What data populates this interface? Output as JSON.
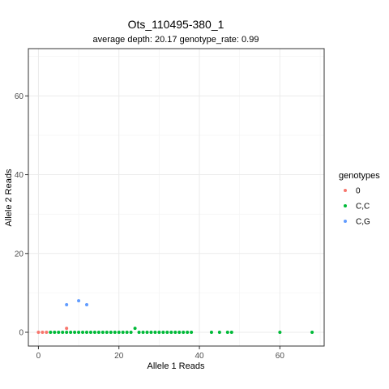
{
  "chart_data": {
    "type": "scatter",
    "title": "Ots_110495-380_1",
    "subtitle": "average depth:  20.17  genotype_rate:  0.99",
    "xlabel": "Allele 1 Reads",
    "ylabel": "Allele 2 Reads",
    "xlim": [
      -2.5,
      71
    ],
    "ylim": [
      -3.5,
      72
    ],
    "x_ticks": [
      0,
      20,
      40,
      60
    ],
    "y_ticks": [
      0,
      20,
      40,
      60
    ],
    "grid": true,
    "legend": {
      "title": "genotypes",
      "position": "right"
    },
    "series": [
      {
        "name": "0",
        "color": "#F8766D",
        "points": [
          [
            0,
            0
          ],
          [
            1,
            0
          ],
          [
            2,
            0
          ],
          [
            7,
            1
          ]
        ]
      },
      {
        "name": "C,C",
        "color": "#00BA38",
        "points": [
          [
            3,
            0
          ],
          [
            4,
            0
          ],
          [
            5,
            0
          ],
          [
            6,
            0
          ],
          [
            7,
            0
          ],
          [
            8,
            0
          ],
          [
            9,
            0
          ],
          [
            10,
            0
          ],
          [
            11,
            0
          ],
          [
            12,
            0
          ],
          [
            13,
            0
          ],
          [
            14,
            0
          ],
          [
            15,
            0
          ],
          [
            16,
            0
          ],
          [
            17,
            0
          ],
          [
            18,
            0
          ],
          [
            19,
            0
          ],
          [
            20,
            0
          ],
          [
            21,
            0
          ],
          [
            22,
            0
          ],
          [
            23,
            0
          ],
          [
            24,
            1
          ],
          [
            25,
            0
          ],
          [
            26,
            0
          ],
          [
            27,
            0
          ],
          [
            28,
            0
          ],
          [
            29,
            0
          ],
          [
            30,
            0
          ],
          [
            31,
            0
          ],
          [
            32,
            0
          ],
          [
            33,
            0
          ],
          [
            34,
            0
          ],
          [
            35,
            0
          ],
          [
            36,
            0
          ],
          [
            37,
            0
          ],
          [
            38,
            0
          ],
          [
            43,
            0
          ],
          [
            45,
            0
          ],
          [
            47,
            0
          ],
          [
            48,
            0
          ],
          [
            60,
            0
          ],
          [
            68,
            0
          ]
        ]
      },
      {
        "name": "C,G",
        "color": "#619CFF",
        "points": [
          [
            7,
            7
          ],
          [
            10,
            8
          ],
          [
            12,
            7
          ]
        ]
      }
    ]
  }
}
